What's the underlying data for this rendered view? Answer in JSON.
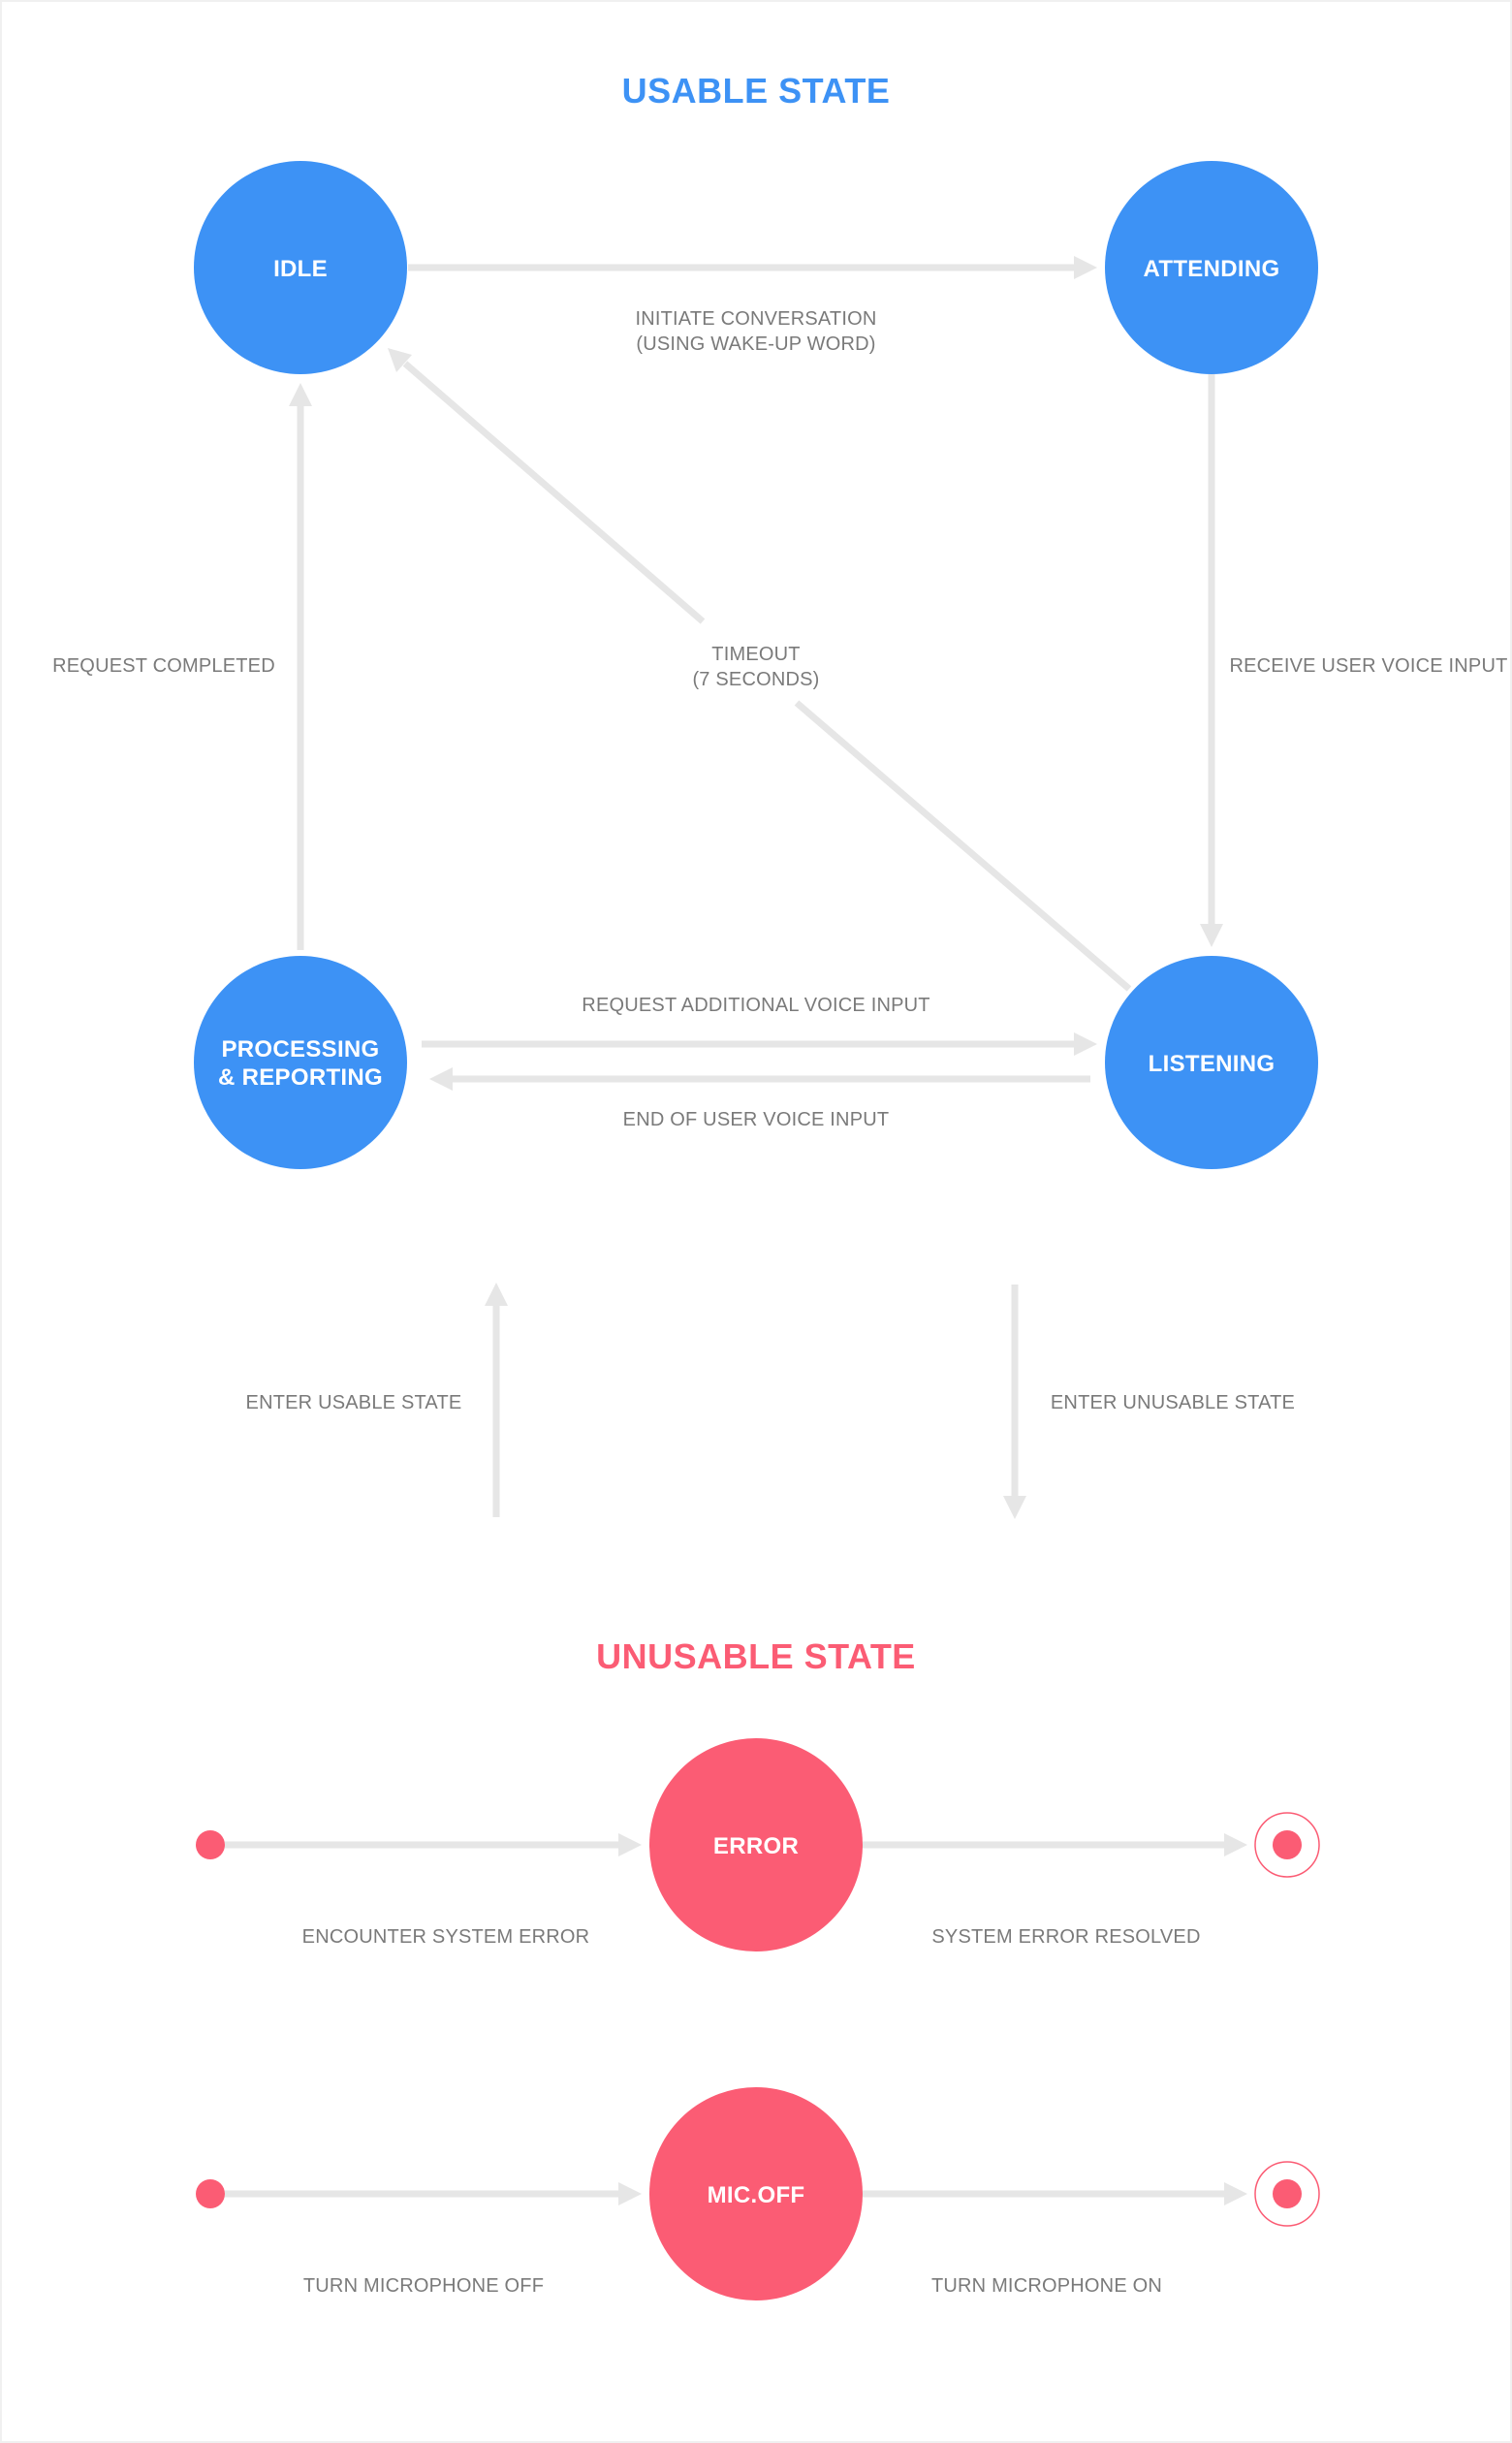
{
  "usable_state": {
    "title": "USABLE STATE",
    "color": "#3d92f5",
    "nodes": {
      "idle": "IDLE",
      "attending": "ATTENDING",
      "listening": "LISTENING",
      "processing_line1": "PROCESSING",
      "processing_line2": "& REPORTING"
    },
    "edges": {
      "initiate_line1": "INITIATE CONVERSATION",
      "initiate_line2": "(USING WAKE-UP WORD)",
      "receive_voice": "RECEIVE USER VOICE INPUT",
      "timeout_line1": "TIMEOUT",
      "timeout_line2": "(7 SECONDS)",
      "request_completed": "REQUEST COMPLETED",
      "request_additional": "REQUEST ADDITIONAL VOICE INPUT",
      "end_of_voice": "END OF USER VOICE INPUT"
    }
  },
  "transitions": {
    "enter_usable": "ENTER USABLE STATE",
    "enter_unusable": "ENTER UNUSABLE STATE"
  },
  "unusable_state": {
    "title": "UNUSABLE STATE",
    "color": "#fb5c74",
    "nodes": {
      "error": "ERROR",
      "mic_off": "MIC.OFF"
    },
    "edges": {
      "encounter_error": "ENCOUNTER SYSTEM ERROR",
      "error_resolved": "SYSTEM ERROR RESOLVED",
      "turn_mic_off": "TURN MICROPHONE OFF",
      "turn_mic_on": "TURN MICROPHONE ON"
    }
  }
}
